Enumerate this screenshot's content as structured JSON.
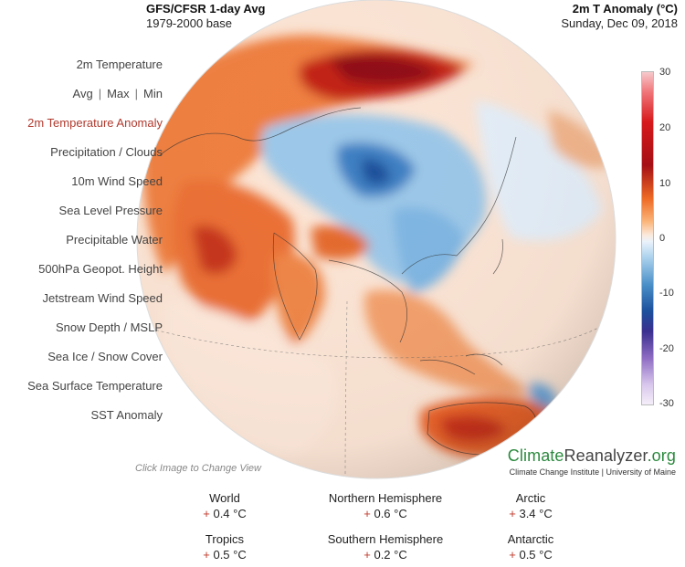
{
  "header": {
    "title": "GFS/CFSR 1-day Avg",
    "base": "1979-2000 base",
    "variable": "2m T Anomaly (°C)",
    "date": "Sunday, Dec 09, 2018"
  },
  "menu": {
    "items": [
      {
        "label": "2m Temperature"
      },
      {
        "label": "Avg",
        "sep1": "|",
        "label2": "Max",
        "sep2": "|",
        "label3": "Min"
      },
      {
        "label": "2m Temperature Anomaly",
        "active": true
      },
      {
        "label": "Precipitation / Clouds"
      },
      {
        "label": "10m Wind Speed"
      },
      {
        "label": "Sea Level Pressure"
      },
      {
        "label": "Precipitable Water"
      },
      {
        "label": "500hPa Geopot. Height"
      },
      {
        "label": "Jetstream Wind Speed"
      },
      {
        "label": "Snow Depth / MSLP"
      },
      {
        "label": "Sea Ice / Snow Cover"
      },
      {
        "label": "Sea Surface Temperature"
      },
      {
        "label": "SST Anomaly"
      }
    ]
  },
  "colorbar": {
    "ticks": [
      "30",
      "20",
      "10",
      "0",
      "-10",
      "-20",
      "-30"
    ]
  },
  "hint": "Click Image to Change View",
  "brand": {
    "climate": "Climate",
    "reanalyzer": "Reanalyzer",
    "org": ".org",
    "subtitle": "Climate Change Institute | University of Maine"
  },
  "stats": [
    {
      "region": "World",
      "sign": "+",
      "value": "0.4 °C"
    },
    {
      "region": "Northern Hemisphere",
      "sign": "+",
      "value": "0.6 °C"
    },
    {
      "region": "Arctic",
      "sign": "+",
      "value": "3.4 °C"
    },
    {
      "region": "Tropics",
      "sign": "+",
      "value": "0.5 °C"
    },
    {
      "region": "Southern Hemisphere",
      "sign": "+",
      "value": "0.2 °C"
    },
    {
      "region": "Antarctic",
      "sign": "+",
      "value": "0.5 °C"
    }
  ],
  "colors": {
    "active_menu": "#b03a2e",
    "plus": "#c0392b",
    "brand_green": "#2b8a3e"
  }
}
